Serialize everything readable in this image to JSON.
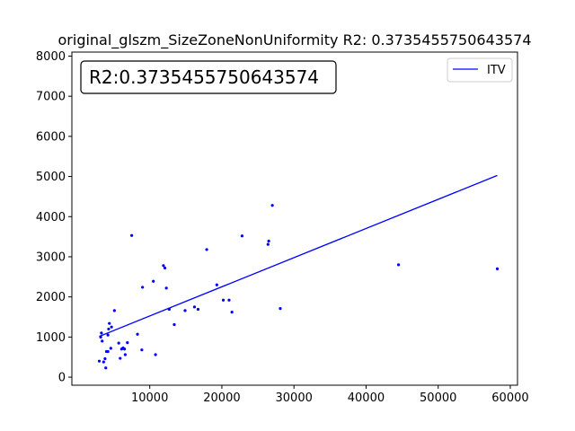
{
  "chart_data": {
    "type": "scatter",
    "title": "original_glszm_SizeZoneNonUniformity R2: 0.3735455750643574",
    "annotation": "R2:0.3735455750643574",
    "xlabel": "",
    "ylabel": "",
    "xlim": [
      -800,
      61000
    ],
    "ylim": [
      -200,
      8100
    ],
    "xticks": [
      10000,
      20000,
      30000,
      40000,
      50000,
      60000
    ],
    "yticks": [
      0,
      1000,
      2000,
      3000,
      4000,
      5000,
      6000,
      7000,
      8000
    ],
    "grid": false,
    "legend": {
      "position": "top-right",
      "entries": [
        "ITV"
      ]
    },
    "color": "#0000ff",
    "points": [
      [
        3000,
        400
      ],
      [
        3200,
        1000
      ],
      [
        3300,
        1100
      ],
      [
        3400,
        900
      ],
      [
        3600,
        380
      ],
      [
        3800,
        460
      ],
      [
        3900,
        230
      ],
      [
        4000,
        640
      ],
      [
        4200,
        640
      ],
      [
        4200,
        1050
      ],
      [
        4300,
        1200
      ],
      [
        4400,
        1340
      ],
      [
        4600,
        720
      ],
      [
        4700,
        1250
      ],
      [
        5100,
        1660
      ],
      [
        5700,
        850
      ],
      [
        5900,
        470
      ],
      [
        6100,
        700
      ],
      [
        6300,
        730
      ],
      [
        6500,
        700
      ],
      [
        6600,
        560
      ],
      [
        6900,
        860
      ],
      [
        7500,
        3530
      ],
      [
        8300,
        1070
      ],
      [
        8900,
        680
      ],
      [
        9000,
        2240
      ],
      [
        10500,
        2390
      ],
      [
        10800,
        560
      ],
      [
        11900,
        2780
      ],
      [
        12100,
        2720
      ],
      [
        12300,
        2220
      ],
      [
        12700,
        1690
      ],
      [
        13400,
        1310
      ],
      [
        14900,
        1660
      ],
      [
        16200,
        1750
      ],
      [
        16700,
        1690
      ],
      [
        17900,
        3180
      ],
      [
        19300,
        2300
      ],
      [
        20200,
        1920
      ],
      [
        21000,
        1920
      ],
      [
        21400,
        1620
      ],
      [
        22800,
        3520
      ],
      [
        26400,
        3310
      ],
      [
        26500,
        3390
      ],
      [
        27000,
        4280
      ],
      [
        28100,
        1710
      ],
      [
        44500,
        2800
      ],
      [
        58200,
        2700
      ]
    ],
    "fit_line": {
      "name": "ITV",
      "x": [
        3000,
        58200
      ],
      "y": [
        1017,
        5027
      ]
    }
  }
}
